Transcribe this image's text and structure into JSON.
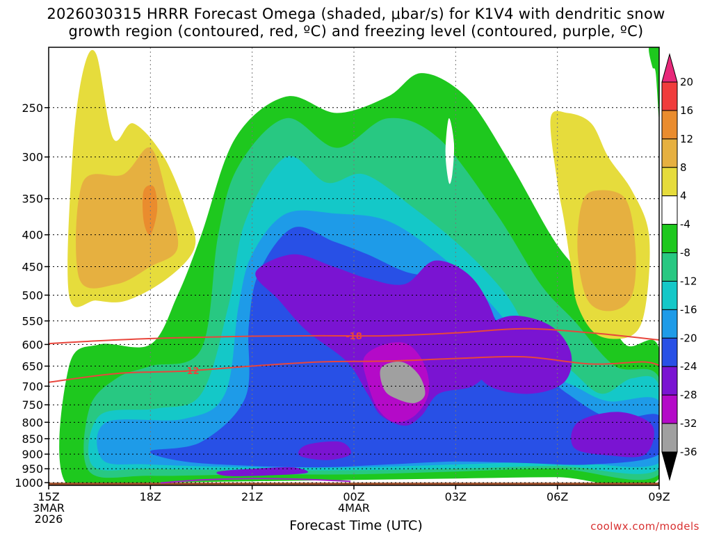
{
  "title_lines": [
    "2026030315 HRRR Forecast Omega (shaded, μbar/s) for K1V4 with dendritic snow",
    "growth region (contoured, red, ºC) and freezing level (contoured, purple, ºC)"
  ],
  "watermark": "coolwx.com/models",
  "chart_data": {
    "type": "heatmap",
    "xlabel": "Forecast Time (UTC)",
    "ylabel": "",
    "x_ticks": [
      {
        "hour": 0,
        "lines": [
          "15Z",
          "3MAR",
          "2026"
        ]
      },
      {
        "hour": 3,
        "lines": [
          "18Z"
        ]
      },
      {
        "hour": 6,
        "lines": [
          "21Z"
        ]
      },
      {
        "hour": 9,
        "lines": [
          "00Z",
          "4MAR"
        ]
      },
      {
        "hour": 12,
        "lines": [
          "03Z"
        ]
      },
      {
        "hour": 15,
        "lines": [
          "06Z"
        ]
      },
      {
        "hour": 18,
        "lines": [
          "09Z"
        ]
      }
    ],
    "xlim": [
      0,
      18
    ],
    "y_ticks": [
      250,
      300,
      350,
      400,
      450,
      500,
      550,
      600,
      650,
      700,
      750,
      800,
      850,
      900,
      950,
      1000
    ],
    "y_tick_labels": [
      "250",
      "300",
      "350",
      "400",
      "450",
      "500",
      "550",
      "600",
      "650",
      "700",
      "750",
      "800",
      "850",
      "900",
      "950",
      "1000"
    ],
    "ylim": [
      200,
      1010
    ],
    "y_reversed": true,
    "colorbar": {
      "labels": [
        "20",
        "16",
        "12",
        "8",
        "4",
        "-4",
        "-8",
        "-12",
        "-16",
        "-20",
        "-24",
        "-28",
        "-32",
        "-36"
      ],
      "colors": [
        "#e8287a",
        "#f03c3c",
        "#ea8c2e",
        "#e6b040",
        "#e6dc3c",
        "#ffffff",
        "#1ec81e",
        "#28c882",
        "#14c8c8",
        "#1e9be8",
        "#2850e6",
        "#7a14d2",
        "#b40ac8",
        "#a0a0a0",
        "#000000"
      ]
    },
    "shaded_regions": [
      {
        "level": "-8",
        "color": "#1ec81e",
        "points": [
          [
            0.5,
            1000
          ],
          [
            0.6,
            650
          ],
          [
            1.5,
            600
          ],
          [
            3,
            600
          ],
          [
            3.8,
            500
          ],
          [
            4.5,
            400
          ],
          [
            5.5,
            280
          ],
          [
            7,
            240
          ],
          [
            8.5,
            255
          ],
          [
            10,
            240
          ],
          [
            11,
            220
          ],
          [
            12.3,
            240
          ],
          [
            13.5,
            300
          ],
          [
            14.8,
            400
          ],
          [
            15.5,
            450
          ],
          [
            16.2,
            500
          ],
          [
            17,
            600
          ],
          [
            18,
            610
          ],
          [
            18,
            985
          ],
          [
            15,
            980
          ],
          [
            12,
            985
          ],
          [
            9,
            990
          ],
          [
            6,
            995
          ],
          [
            3,
            1000
          ]
        ]
      },
      {
        "level": "-12",
        "color": "#28c882",
        "points": [
          [
            1.2,
            960
          ],
          [
            1.2,
            760
          ],
          [
            2,
            680
          ],
          [
            3,
            650
          ],
          [
            4.5,
            610
          ],
          [
            5,
            400
          ],
          [
            5.6,
            310
          ],
          [
            7,
            260
          ],
          [
            8.5,
            290
          ],
          [
            10,
            260
          ],
          [
            11.5,
            280
          ],
          [
            13.2,
            370
          ],
          [
            14.5,
            480
          ],
          [
            15.5,
            550
          ],
          [
            16.7,
            650
          ],
          [
            18,
            680
          ],
          [
            18,
            970
          ],
          [
            15,
            950
          ],
          [
            12,
            960
          ],
          [
            9,
            970
          ],
          [
            6,
            970
          ],
          [
            3,
            975
          ]
        ]
      },
      {
        "level": "-16",
        "color": "#14c8c8",
        "points": [
          [
            1.3,
            940
          ],
          [
            1.5,
            780
          ],
          [
            3.2,
            760
          ],
          [
            4.5,
            720
          ],
          [
            5.3,
            520
          ],
          [
            5.8,
            380
          ],
          [
            7,
            300
          ],
          [
            8.2,
            330
          ],
          [
            9.3,
            320
          ],
          [
            10.7,
            360
          ],
          [
            12.2,
            420
          ],
          [
            13.5,
            500
          ],
          [
            14.3,
            590
          ],
          [
            15.4,
            660
          ],
          [
            16.3,
            720
          ],
          [
            17.2,
            680
          ],
          [
            18,
            700
          ],
          [
            18,
            950
          ],
          [
            15,
            940
          ],
          [
            12,
            950
          ],
          [
            9,
            955
          ],
          [
            6,
            955
          ],
          [
            3,
            950
          ]
        ]
      },
      {
        "level": "-20",
        "color": "#1e9be8",
        "points": [
          [
            1.6,
            920
          ],
          [
            1.7,
            800
          ],
          [
            4,
            790
          ],
          [
            5.2,
            720
          ],
          [
            5.6,
            520
          ],
          [
            6,
            430
          ],
          [
            7,
            370
          ],
          [
            8.5,
            370
          ],
          [
            10,
            380
          ],
          [
            11.5,
            430
          ],
          [
            12.8,
            500
          ],
          [
            13.8,
            580
          ],
          [
            14.3,
            650
          ],
          [
            15.5,
            700
          ],
          [
            16.5,
            740
          ],
          [
            18,
            740
          ],
          [
            18,
            930
          ],
          [
            15,
            925
          ],
          [
            12,
            935
          ],
          [
            9,
            945
          ],
          [
            6,
            945
          ],
          [
            3,
            935
          ]
        ]
      },
      {
        "level": "-24",
        "color": "#2850e6",
        "points": [
          [
            3,
            890
          ],
          [
            4.5,
            860
          ],
          [
            5.8,
            730
          ],
          [
            5.9,
            560
          ],
          [
            6.2,
            460
          ],
          [
            7.2,
            390
          ],
          [
            8.4,
            410
          ],
          [
            9.4,
            430
          ],
          [
            10.6,
            460
          ],
          [
            11.8,
            470
          ],
          [
            12.7,
            500
          ],
          [
            13.8,
            620
          ],
          [
            14.5,
            660
          ],
          [
            15.3,
            720
          ],
          [
            16.6,
            790
          ],
          [
            18,
            780
          ],
          [
            18,
            900
          ],
          [
            16,
            935
          ],
          [
            14,
            930
          ],
          [
            12,
            925
          ],
          [
            10,
            935
          ],
          [
            8,
            945
          ],
          [
            6,
            940
          ],
          [
            4,
            925
          ]
        ]
      },
      {
        "level": "-28",
        "color": "#7a14d2",
        "points": [
          [
            6.1,
            460
          ],
          [
            7.2,
            430
          ],
          [
            8.4,
            450
          ],
          [
            9.4,
            470
          ],
          [
            10.5,
            480
          ],
          [
            11.4,
            440
          ],
          [
            12.5,
            470
          ],
          [
            13.2,
            560
          ],
          [
            13,
            650
          ],
          [
            12.5,
            700
          ],
          [
            11.5,
            720
          ],
          [
            11,
            780
          ],
          [
            10.5,
            810
          ],
          [
            9.8,
            780
          ],
          [
            9.4,
            720
          ],
          [
            8.8,
            640
          ],
          [
            7.6,
            570
          ],
          [
            6.8,
            510
          ]
        ]
      },
      {
        "level": "-28",
        "color": "#7a14d2",
        "points": [
          [
            12.6,
            580
          ],
          [
            13.6,
            540
          ],
          [
            14.8,
            560
          ],
          [
            15.4,
            620
          ],
          [
            15.2,
            690
          ],
          [
            14.2,
            720
          ],
          [
            13,
            700
          ],
          [
            12.5,
            640
          ]
        ]
      },
      {
        "level": "-28",
        "color": "#7a14d2",
        "points": [
          [
            15.6,
            800
          ],
          [
            16.8,
            770
          ],
          [
            17.8,
            810
          ],
          [
            17.6,
            900
          ],
          [
            16.6,
            905
          ],
          [
            15.5,
            880
          ]
        ]
      },
      {
        "level": "-28",
        "color": "#7a14d2",
        "points": [
          [
            5,
            960
          ],
          [
            6,
            950
          ],
          [
            7.2,
            945
          ],
          [
            7.6,
            965
          ],
          [
            6.2,
            975
          ],
          [
            5.2,
            975
          ]
        ]
      },
      {
        "level": "-28",
        "color": "#7a14d2",
        "points": [
          [
            7.6,
            870
          ],
          [
            8.6,
            860
          ],
          [
            8.9,
            900
          ],
          [
            8.2,
            920
          ],
          [
            7.4,
            905
          ]
        ]
      },
      {
        "level": "-32",
        "color": "#b40ac8",
        "points": [
          [
            9.3,
            630
          ],
          [
            9.9,
            600
          ],
          [
            10.6,
            600
          ],
          [
            11.1,
            650
          ],
          [
            11.2,
            720
          ],
          [
            10.8,
            780
          ],
          [
            10.2,
            800
          ],
          [
            9.7,
            760
          ],
          [
            9.4,
            690
          ]
        ]
      },
      {
        "level": "-36",
        "color": "#a0a0a0",
        "points": [
          [
            9.8,
            655
          ],
          [
            10.4,
            640
          ],
          [
            10.9,
            670
          ],
          [
            11.1,
            720
          ],
          [
            10.8,
            745
          ],
          [
            10.3,
            735
          ],
          [
            9.9,
            710
          ]
        ]
      },
      {
        "level": "4",
        "color": "#e6dc3c",
        "points": [
          [
            0.6,
            500
          ],
          [
            0.7,
            300
          ],
          [
            1,
            220
          ],
          [
            1.4,
            205
          ],
          [
            1.9,
            280
          ],
          [
            2.5,
            265
          ],
          [
            3.4,
            300
          ],
          [
            4.1,
            370
          ],
          [
            4.3,
            420
          ],
          [
            3.5,
            470
          ],
          [
            2.3,
            510
          ],
          [
            1.4,
            510
          ]
        ]
      },
      {
        "level": "8",
        "color": "#e6b040",
        "points": [
          [
            0.9,
            470
          ],
          [
            1,
            330
          ],
          [
            2.2,
            320
          ],
          [
            3,
            290
          ],
          [
            3.5,
            350
          ],
          [
            3.8,
            420
          ],
          [
            3,
            450
          ],
          [
            2,
            480
          ]
        ]
      },
      {
        "level": "12",
        "color": "#ea8c2e",
        "points": [
          [
            2.8,
            340
          ],
          [
            3.1,
            335
          ],
          [
            3.2,
            365
          ],
          [
            3,
            400
          ],
          [
            2.8,
            380
          ]
        ]
      },
      {
        "level": "4",
        "color": "#e6dc3c",
        "points": [
          [
            14.8,
            260
          ],
          [
            15.3,
            255
          ],
          [
            16,
            265
          ],
          [
            16.5,
            300
          ],
          [
            17.2,
            340
          ],
          [
            17.7,
            400
          ],
          [
            17.6,
            520
          ],
          [
            17.2,
            580
          ],
          [
            16.2,
            580
          ],
          [
            15.6,
            520
          ],
          [
            15.4,
            450
          ],
          [
            15.2,
            380
          ],
          [
            15,
            330
          ]
        ]
      },
      {
        "level": "8",
        "color": "#e6b040",
        "points": [
          [
            15.7,
            360
          ],
          [
            16.1,
            340
          ],
          [
            17,
            350
          ],
          [
            17.3,
            420
          ],
          [
            17.2,
            500
          ],
          [
            16.6,
            530
          ],
          [
            15.9,
            510
          ],
          [
            15.6,
            430
          ]
        ]
      },
      {
        "level": "-8",
        "color": "#1ec81e",
        "points": [
          [
            17.7,
            200
          ],
          [
            18,
            200
          ],
          [
            18,
            260
          ],
          [
            17.9,
            220
          ],
          [
            17.8,
            215
          ]
        ]
      },
      {
        "level": "4",
        "color": "#ffffff",
        "points": [
          [
            11.7,
            295
          ],
          [
            11.8,
            260
          ],
          [
            11.95,
            285
          ],
          [
            11.9,
            320
          ],
          [
            11.8,
            330
          ]
        ]
      }
    ],
    "red_contours": [
      {
        "label": "-18",
        "label_hour": 9,
        "points": [
          [
            0,
            598
          ],
          [
            2,
            590
          ],
          [
            4,
            585
          ],
          [
            6,
            582
          ],
          [
            8,
            581
          ],
          [
            10,
            581
          ],
          [
            12,
            575
          ],
          [
            14,
            566
          ],
          [
            16,
            575
          ],
          [
            18,
            590
          ]
        ]
      },
      {
        "label": "-12",
        "label_hour": 4.2,
        "points": [
          [
            0,
            690
          ],
          [
            2,
            668
          ],
          [
            4,
            662
          ],
          [
            6,
            650
          ],
          [
            8,
            640
          ],
          [
            10,
            638
          ],
          [
            12,
            632
          ],
          [
            14,
            628
          ],
          [
            16,
            645
          ],
          [
            17.5,
            640
          ],
          [
            18,
            648
          ]
        ]
      }
    ],
    "purple_contours": [
      {
        "label": "",
        "points": [
          [
            3.3,
            1001
          ],
          [
            4.5,
            990
          ],
          [
            6,
            985
          ],
          [
            7.5,
            988
          ],
          [
            8.9,
            995
          ]
        ]
      }
    ],
    "ground": {
      "color": "#a0522d",
      "top_pressure": 1000
    }
  }
}
